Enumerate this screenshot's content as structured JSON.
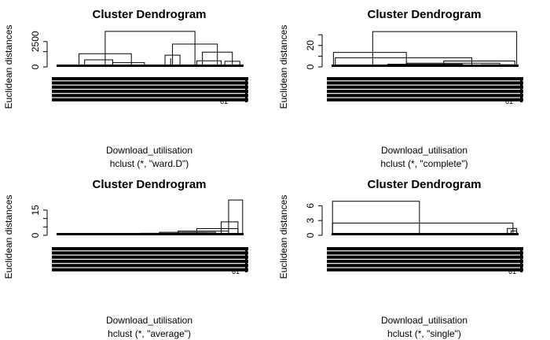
{
  "chart_data": [
    {
      "type": "dendrogram",
      "title": "Cluster Dendrogram",
      "ylabel": "Euclidean distances",
      "xlabel": "Download_utilisation",
      "sub": "hclust (*, \"ward.D\")",
      "yticks": [
        0,
        1500,
        2500
      ],
      "ytick_labels": [
        "0",
        "",
        "2500"
      ],
      "ylim": [
        0,
        3800
      ],
      "leaf_label": "61",
      "merges": [
        {
          "x1": 0.26,
          "x2": 0.74,
          "h": 3500
        },
        {
          "x1": 0.62,
          "x2": 0.86,
          "h": 2250
        },
        {
          "x1": 0.12,
          "x2": 0.4,
          "h": 1300
        },
        {
          "x1": 0.78,
          "x2": 0.94,
          "h": 1450
        },
        {
          "x1": 0.58,
          "x2": 0.66,
          "h": 1150
        },
        {
          "x1": 0.61,
          "x2": 0.61,
          "h": 850
        },
        {
          "x1": 0.15,
          "x2": 0.3,
          "h": 700
        },
        {
          "x1": 0.75,
          "x2": 0.88,
          "h": 600
        },
        {
          "x1": 0.3,
          "x2": 0.47,
          "h": 420
        },
        {
          "x1": 0.9,
          "x2": 0.98,
          "h": 550
        }
      ]
    },
    {
      "type": "dendrogram",
      "title": "Cluster Dendrogram",
      "ylabel": "Euclidean distances",
      "xlabel": "Download_utilisation",
      "sub": "hclust (*, \"complete\")",
      "yticks": [
        0,
        10,
        20,
        30
      ],
      "ytick_labels": [
        "0",
        "",
        "20",
        ""
      ],
      "ylim": [
        0,
        36
      ],
      "leaf_label": "61",
      "merges": [
        {
          "x1": 0.22,
          "x2": 0.99,
          "h": 33
        },
        {
          "x1": 0.01,
          "x2": 0.4,
          "h": 13.5
        },
        {
          "x1": 0.02,
          "x2": 0.75,
          "h": 8.5
        },
        {
          "x1": 0.6,
          "x2": 0.98,
          "h": 5.5
        },
        {
          "x1": 0.4,
          "x2": 0.9,
          "h": 3.5
        },
        {
          "x1": 0.3,
          "x2": 0.7,
          "h": 2.5
        },
        {
          "x1": 0.8,
          "x2": 0.97,
          "h": 2.0
        }
      ]
    },
    {
      "type": "dendrogram",
      "title": "Cluster Dendrogram",
      "ylabel": "Euclidean distances",
      "xlabel": "Download_utilisation",
      "sub": "hclust (*, \"average\")",
      "yticks": [
        0,
        5,
        10,
        15
      ],
      "ytick_labels": [
        "0",
        "",
        "",
        "15"
      ],
      "ylim": [
        0,
        22
      ],
      "leaf_label": "61",
      "merges": [
        {
          "x1": 0.92,
          "x2": 0.995,
          "h": 21
        },
        {
          "x1": 0.88,
          "x2": 0.97,
          "h": 8
        },
        {
          "x1": 0.75,
          "x2": 0.97,
          "h": 4
        },
        {
          "x1": 0.65,
          "x2": 0.92,
          "h": 2.5
        },
        {
          "x1": 0.55,
          "x2": 0.85,
          "h": 1.8
        },
        {
          "x1": 0.45,
          "x2": 0.8,
          "h": 1.2
        },
        {
          "x1": 0.3,
          "x2": 0.7,
          "h": 0.8
        }
      ]
    },
    {
      "type": "dendrogram",
      "title": "Cluster Dendrogram",
      "ylabel": "Euclidean distances",
      "xlabel": "Download_utilisation",
      "sub": "hclust (*, \"single\")",
      "yticks": [
        0,
        3,
        6
      ],
      "ytick_labels": [
        "0",
        "3",
        "6"
      ],
      "ylim": [
        0,
        7.5
      ],
      "leaf_label": "61",
      "merges": [
        {
          "x1": 0.005,
          "x2": 0.47,
          "h": 6.9
        },
        {
          "x1": 0.005,
          "x2": 0.97,
          "h": 2.5
        },
        {
          "x1": 0.94,
          "x2": 0.99,
          "h": 1.4
        },
        {
          "x1": 0.96,
          "x2": 0.99,
          "h": 0.9
        },
        {
          "x1": 0.7,
          "x2": 0.95,
          "h": 0.3
        }
      ]
    }
  ]
}
